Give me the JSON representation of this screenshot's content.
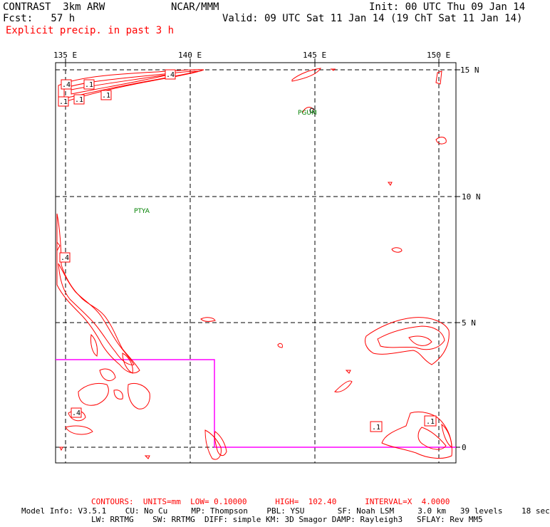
{
  "header": {
    "model": "CONTRAST  3km ARW",
    "org": "NCAR/MMM",
    "init": "Init: 00 UTC Thu 09 Jan 14",
    "fcst": "Fcst:   57 h",
    "valid": "Valid: 09 UTC Sat 11 Jan 14 (19 ChT Sat 11 Jan 14)",
    "field": "Explicit precip. in past 3 h"
  },
  "axes": {
    "lon_labels": [
      "135 E",
      "140 E",
      "145 E",
      "150 E"
    ],
    "lat_labels": [
      "15 N",
      "10 N",
      "5 N",
      "0"
    ]
  },
  "stations": [
    "PTYA",
    "PGUM"
  ],
  "contour_labels": [
    ".4",
    ".1",
    ".1",
    ".4",
    ".1",
    ".1",
    ".4",
    ".4",
    ".1",
    ".1"
  ],
  "colors": {
    "contour": "#ff0000",
    "inner_domain": "#ff00ff",
    "station": "#008000",
    "grid": "#000000"
  },
  "footer": {
    "contours": "CONTOURS:  UNITS=mm  LOW= 0.10000      HIGH=  102.40      INTERVAL=X  4.0000",
    "info1": "Model Info: V3.5.1    CU: No Cu     MP: Thompson    PBL: YSU       SF: Noah LSM     3.0 km   39 levels    18 sec",
    "info2": "LW: RRTMG    SW: RRTMG  DIFF: simple KM: 3D Smagor DAMP: Rayleigh3   SFLAY: Rev MM5"
  }
}
